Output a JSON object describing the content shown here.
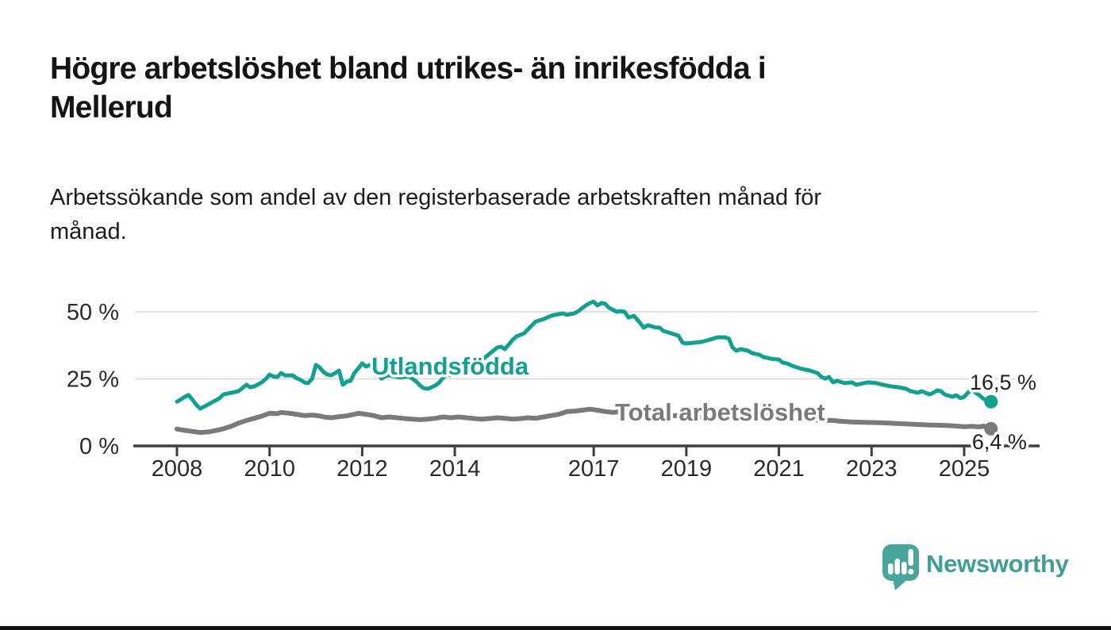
{
  "header": {
    "title_lines": [
      "Högre arbetslöshet bland utrikes- än inrikesfödda i",
      "Mellerud"
    ],
    "subtitle_lines": [
      "Arbetssökande som andel av den registerbaserade arbetskraften månad för",
      "månad."
    ]
  },
  "footer": {
    "brand": "Newsworthy"
  },
  "colors": {
    "foreign_born": "#12a08f",
    "total": "#7a7a7a",
    "axis": "#3f3f3f",
    "gridline": "#d8d8d8",
    "text": "#1f1f1f",
    "logo": "#4ba49b"
  },
  "chart_data": {
    "type": "line",
    "title": "Högre arbetslöshet bland utrikes- än inrikesfödda i Mellerud",
    "subtitle": "Arbetssökande som andel av den registerbaserade arbetskraften månad för månad.",
    "xlabel": "",
    "ylabel": "",
    "grid": "horizontal",
    "legend_position": "inline-labels",
    "x_axis": {
      "range": [
        2007.1,
        2026.6
      ],
      "ticks": [
        2008,
        2010,
        2012,
        2014,
        2017,
        2019,
        2021,
        2023,
        2025
      ]
    },
    "y_axis": {
      "range": [
        0,
        56
      ],
      "ticks": [
        {
          "pct": 0,
          "label": "0 %"
        },
        {
          "pct": 25,
          "label": "25 %"
        },
        {
          "pct": 50,
          "label": "50 %"
        }
      ]
    },
    "series": [
      {
        "name": "Utlandsfödda",
        "color": "#12a08f",
        "stroke_width": 5,
        "label": {
          "text": "Utlandsfödda",
          "year": 2012.2,
          "pct": 26.6
        },
        "end_label": {
          "text": "16,5 %",
          "year": 2025.12,
          "pct": 21.0
        },
        "end_value": "16,5 %",
        "points": [
          [
            2008.0,
            16.5
          ],
          [
            2008.08,
            17.3
          ],
          [
            2008.17,
            18.3
          ],
          [
            2008.25,
            19.0
          ],
          [
            2008.33,
            17.3
          ],
          [
            2008.42,
            15.3
          ],
          [
            2008.5,
            13.9
          ],
          [
            2008.58,
            14.6
          ],
          [
            2008.67,
            15.4
          ],
          [
            2008.75,
            16.2
          ],
          [
            2008.83,
            16.9
          ],
          [
            2008.92,
            17.8
          ],
          [
            2009.0,
            19.2
          ],
          [
            2009.17,
            19.8
          ],
          [
            2009.33,
            20.4
          ],
          [
            2009.5,
            22.8
          ],
          [
            2009.58,
            21.9
          ],
          [
            2009.67,
            22.2
          ],
          [
            2009.83,
            23.7
          ],
          [
            2009.92,
            25.0
          ],
          [
            2010.0,
            26.6
          ],
          [
            2010.08,
            25.9
          ],
          [
            2010.17,
            25.7
          ],
          [
            2010.25,
            27.2
          ],
          [
            2010.33,
            26.3
          ],
          [
            2010.5,
            26.3
          ],
          [
            2010.58,
            25.3
          ],
          [
            2010.67,
            24.6
          ],
          [
            2010.75,
            23.7
          ],
          [
            2010.83,
            23.4
          ],
          [
            2010.92,
            25.1
          ],
          [
            2011.0,
            30.2
          ],
          [
            2011.08,
            29.3
          ],
          [
            2011.17,
            27.5
          ],
          [
            2011.25,
            26.6
          ],
          [
            2011.33,
            26.3
          ],
          [
            2011.42,
            27.2
          ],
          [
            2011.5,
            28.1
          ],
          [
            2011.58,
            22.8
          ],
          [
            2011.67,
            24.0
          ],
          [
            2011.75,
            24.3
          ],
          [
            2011.83,
            27.2
          ],
          [
            2011.92,
            29.0
          ],
          [
            2012.0,
            30.8
          ],
          [
            2012.08,
            29.6
          ],
          [
            2012.17,
            30.2
          ],
          [
            2012.25,
            28.7
          ],
          [
            2012.33,
            27.0
          ],
          [
            2012.42,
            25.1
          ],
          [
            2012.5,
            26.0
          ],
          [
            2012.58,
            26.3
          ],
          [
            2012.67,
            26.0
          ],
          [
            2012.83,
            25.5
          ],
          [
            2013.0,
            26.0
          ],
          [
            2013.08,
            25.1
          ],
          [
            2013.17,
            24.0
          ],
          [
            2013.25,
            22.5
          ],
          [
            2013.33,
            21.5
          ],
          [
            2013.42,
            21.3
          ],
          [
            2013.5,
            21.9
          ],
          [
            2013.58,
            22.5
          ],
          [
            2013.67,
            23.7
          ],
          [
            2013.75,
            25.5
          ],
          [
            2013.83,
            26.6
          ],
          [
            2013.92,
            26.3
          ],
          [
            2014.0,
            26.6
          ],
          [
            2014.17,
            27.5
          ],
          [
            2014.33,
            29.0
          ],
          [
            2014.5,
            31.0
          ],
          [
            2014.67,
            33.2
          ],
          [
            2014.83,
            35.5
          ],
          [
            2014.92,
            36.7
          ],
          [
            2015.0,
            37.0
          ],
          [
            2015.08,
            36.1
          ],
          [
            2015.17,
            37.9
          ],
          [
            2015.25,
            39.6
          ],
          [
            2015.33,
            40.8
          ],
          [
            2015.5,
            42.0
          ],
          [
            2015.58,
            43.5
          ],
          [
            2015.67,
            45.0
          ],
          [
            2015.75,
            46.4
          ],
          [
            2015.92,
            47.3
          ],
          [
            2016.08,
            48.5
          ],
          [
            2016.17,
            48.9
          ],
          [
            2016.33,
            49.4
          ],
          [
            2016.42,
            48.9
          ],
          [
            2016.58,
            49.4
          ],
          [
            2016.67,
            50.3
          ],
          [
            2016.83,
            52.4
          ],
          [
            2016.92,
            53.3
          ],
          [
            2017.0,
            53.8
          ],
          [
            2017.08,
            52.4
          ],
          [
            2017.17,
            53.3
          ],
          [
            2017.25,
            53.0
          ],
          [
            2017.33,
            51.5
          ],
          [
            2017.5,
            50.0
          ],
          [
            2017.58,
            50.3
          ],
          [
            2017.67,
            50.0
          ],
          [
            2017.75,
            47.9
          ],
          [
            2017.87,
            48.5
          ],
          [
            2018.0,
            45.9
          ],
          [
            2018.08,
            44.1
          ],
          [
            2018.17,
            45.0
          ],
          [
            2018.33,
            44.2
          ],
          [
            2018.42,
            44.1
          ],
          [
            2018.5,
            42.9
          ],
          [
            2018.67,
            42.0
          ],
          [
            2018.83,
            41.1
          ],
          [
            2018.92,
            38.5
          ],
          [
            2019.0,
            38.2
          ],
          [
            2019.17,
            38.5
          ],
          [
            2019.33,
            38.8
          ],
          [
            2019.5,
            39.6
          ],
          [
            2019.67,
            40.5
          ],
          [
            2019.83,
            40.5
          ],
          [
            2019.92,
            40.0
          ],
          [
            2020.0,
            36.7
          ],
          [
            2020.08,
            35.5
          ],
          [
            2020.17,
            36.1
          ],
          [
            2020.33,
            35.5
          ],
          [
            2020.42,
            34.6
          ],
          [
            2020.58,
            34.0
          ],
          [
            2020.67,
            33.1
          ],
          [
            2020.83,
            32.5
          ],
          [
            2021.0,
            32.2
          ],
          [
            2021.08,
            31.1
          ],
          [
            2021.17,
            30.8
          ],
          [
            2021.33,
            29.6
          ],
          [
            2021.5,
            28.7
          ],
          [
            2021.67,
            28.1
          ],
          [
            2021.83,
            27.2
          ],
          [
            2021.92,
            25.7
          ],
          [
            2022.0,
            25.1
          ],
          [
            2022.08,
            25.7
          ],
          [
            2022.17,
            23.7
          ],
          [
            2022.25,
            24.3
          ],
          [
            2022.42,
            23.4
          ],
          [
            2022.58,
            23.7
          ],
          [
            2022.67,
            22.8
          ],
          [
            2022.83,
            23.4
          ],
          [
            2022.92,
            23.7
          ],
          [
            2023.08,
            23.5
          ],
          [
            2023.25,
            22.8
          ],
          [
            2023.42,
            22.2
          ],
          [
            2023.58,
            21.9
          ],
          [
            2023.75,
            21.3
          ],
          [
            2023.83,
            20.5
          ],
          [
            2024.0,
            19.8
          ],
          [
            2024.08,
            20.4
          ],
          [
            2024.25,
            19.2
          ],
          [
            2024.33,
            19.8
          ],
          [
            2024.42,
            20.7
          ],
          [
            2024.5,
            20.4
          ],
          [
            2024.58,
            19.2
          ],
          [
            2024.75,
            18.3
          ],
          [
            2024.83,
            18.9
          ],
          [
            2024.92,
            17.8
          ],
          [
            2025.0,
            18.3
          ],
          [
            2025.08,
            19.8
          ],
          [
            2025.17,
            21.3
          ],
          [
            2025.25,
            19.8
          ],
          [
            2025.33,
            18.9
          ],
          [
            2025.42,
            17.5
          ],
          [
            2025.58,
            16.5
          ]
        ]
      },
      {
        "name": "Total arbetslöshet",
        "color": "#7a7a7a",
        "stroke_width": 6,
        "label": {
          "text": "Total arbetslöshet",
          "year": 2017.46,
          "pct": 9.5
        },
        "end_label": {
          "text": "6,4 %",
          "year": 2025.17,
          "pct": -1.2
        },
        "end_value": "6,4 %",
        "points": [
          [
            2008.0,
            6.3
          ],
          [
            2008.17,
            5.8
          ],
          [
            2008.33,
            5.4
          ],
          [
            2008.5,
            5.0
          ],
          [
            2008.67,
            5.2
          ],
          [
            2008.83,
            5.7
          ],
          [
            2009.0,
            6.4
          ],
          [
            2009.17,
            7.3
          ],
          [
            2009.33,
            8.5
          ],
          [
            2009.5,
            9.5
          ],
          [
            2009.67,
            10.3
          ],
          [
            2009.83,
            11.1
          ],
          [
            2010.0,
            12.2
          ],
          [
            2010.17,
            12.0
          ],
          [
            2010.25,
            12.5
          ],
          [
            2010.42,
            12.2
          ],
          [
            2010.58,
            11.8
          ],
          [
            2010.75,
            11.3
          ],
          [
            2010.92,
            11.5
          ],
          [
            2011.08,
            11.2
          ],
          [
            2011.17,
            10.8
          ],
          [
            2011.33,
            10.5
          ],
          [
            2011.5,
            10.9
          ],
          [
            2011.67,
            11.2
          ],
          [
            2011.83,
            11.8
          ],
          [
            2011.92,
            12.2
          ],
          [
            2012.08,
            11.8
          ],
          [
            2012.25,
            11.3
          ],
          [
            2012.42,
            10.5
          ],
          [
            2012.58,
            10.8
          ],
          [
            2012.75,
            10.5
          ],
          [
            2012.92,
            10.2
          ],
          [
            2013.08,
            10.0
          ],
          [
            2013.25,
            9.8
          ],
          [
            2013.42,
            10.0
          ],
          [
            2013.58,
            10.3
          ],
          [
            2013.75,
            10.8
          ],
          [
            2013.92,
            10.5
          ],
          [
            2014.08,
            10.8
          ],
          [
            2014.25,
            10.5
          ],
          [
            2014.42,
            10.2
          ],
          [
            2014.58,
            10.0
          ],
          [
            2014.75,
            10.2
          ],
          [
            2014.92,
            10.5
          ],
          [
            2015.08,
            10.3
          ],
          [
            2015.25,
            10.0
          ],
          [
            2015.42,
            10.2
          ],
          [
            2015.58,
            10.5
          ],
          [
            2015.75,
            10.3
          ],
          [
            2015.92,
            10.8
          ],
          [
            2016.08,
            11.3
          ],
          [
            2016.25,
            11.8
          ],
          [
            2016.42,
            12.8
          ],
          [
            2016.58,
            13.0
          ],
          [
            2016.75,
            13.3
          ],
          [
            2016.92,
            13.7
          ],
          [
            2017.08,
            13.3
          ],
          [
            2017.25,
            12.8
          ],
          [
            2017.42,
            12.5
          ],
          [
            2017.58,
            12.8
          ],
          [
            2017.75,
            13.0
          ],
          [
            2017.92,
            12.8
          ],
          [
            2018.25,
            12.0
          ],
          [
            2018.58,
            11.5
          ],
          [
            2018.92,
            11.0
          ],
          [
            2019.25,
            10.8
          ],
          [
            2019.58,
            10.5
          ],
          [
            2019.92,
            10.8
          ],
          [
            2020.25,
            11.5
          ],
          [
            2020.58,
            11.2
          ],
          [
            2020.92,
            10.8
          ],
          [
            2021.25,
            10.3
          ],
          [
            2021.58,
            9.8
          ],
          [
            2021.92,
            9.6
          ],
          [
            2022.17,
            9.5
          ],
          [
            2022.33,
            9.2
          ],
          [
            2022.58,
            8.9
          ],
          [
            2022.83,
            8.8
          ],
          [
            2023.08,
            8.7
          ],
          [
            2023.25,
            8.6
          ],
          [
            2023.5,
            8.4
          ],
          [
            2023.75,
            8.2
          ],
          [
            2024.0,
            8.0
          ],
          [
            2024.25,
            7.8
          ],
          [
            2024.5,
            7.7
          ],
          [
            2024.75,
            7.5
          ],
          [
            2025.0,
            7.2
          ],
          [
            2025.17,
            7.3
          ],
          [
            2025.33,
            7.1
          ],
          [
            2025.42,
            7.4
          ],
          [
            2025.58,
            6.4
          ]
        ]
      }
    ]
  }
}
